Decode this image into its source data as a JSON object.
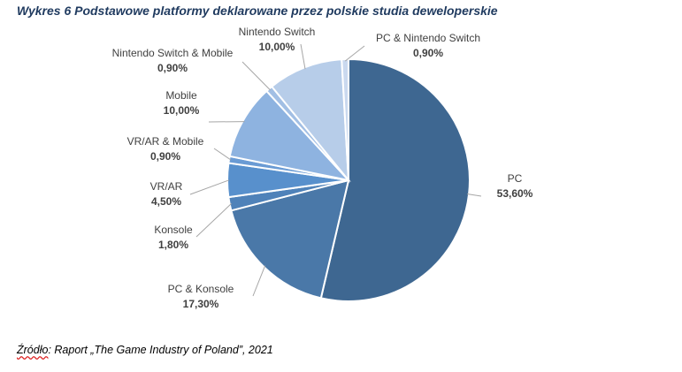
{
  "title": "Wykres 6 Podstawowe platformy deklarowane przez polskie studia deweloperskie",
  "source": {
    "prefix": "Źródło",
    "rest": ": Raport „The Game Industry of Poland”, 2021"
  },
  "chart_data": {
    "type": "pie",
    "categories": [
      "PC",
      "PC & Konsole",
      "Konsole",
      "VR/AR",
      "VR/AR & Mobile",
      "Mobile",
      "Nintendo Switch & Mobile",
      "Nintendo Switch",
      "PC & Nintendo Switch"
    ],
    "values": [
      53.6,
      17.3,
      1.8,
      4.5,
      0.9,
      10.0,
      0.9,
      10.0,
      0.9
    ],
    "value_labels": [
      "53,60%",
      "17,30%",
      "1,80%",
      "4,50%",
      "0,90%",
      "10,00%",
      "0,90%",
      "10,00%",
      "0,90%"
    ],
    "colors": [
      "#3e6791",
      "#4a78a8",
      "#4f82b9",
      "#5890cc",
      "#6a9bd4",
      "#8eb3e0",
      "#a2bfe4",
      "#b7cde9",
      "#cad9ef"
    ],
    "start_angle_deg": 0,
    "direction": "clockwise",
    "legend": "none",
    "labels": "outside-with-leader-lines"
  }
}
